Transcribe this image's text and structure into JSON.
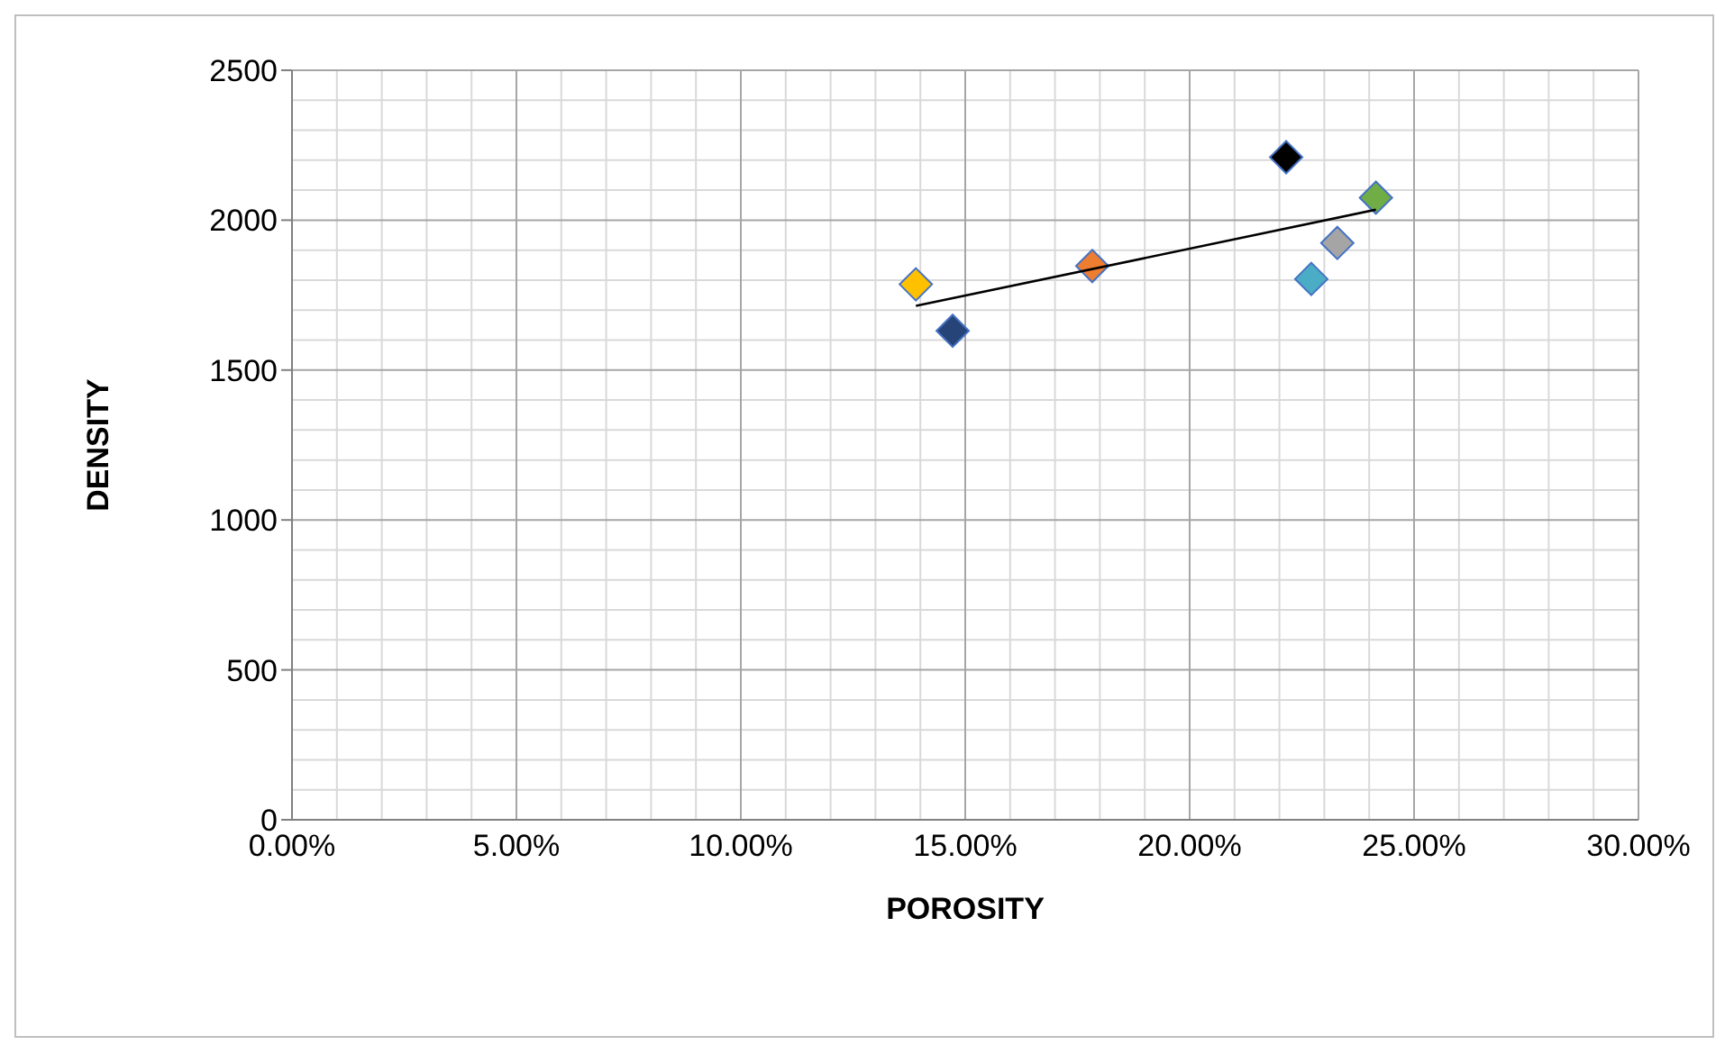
{
  "chart_data": {
    "type": "scatter",
    "xlabel": "POROSITY",
    "ylabel": "DENSITY",
    "x": [
      0.139,
      0.1472,
      0.1783,
      0.2215,
      0.2271,
      0.2329,
      0.2415
    ],
    "series": [
      {
        "values": [
          1786,
          1631,
          1847,
          2210,
          1804,
          1924,
          2075
        ],
        "colors": [
          "#ffc000",
          "#264478",
          "#ed7d31",
          "#000000",
          "#4bacc6",
          "#a5a5a5",
          "#70ad47"
        ],
        "marker": "diamond"
      },
      {
        "type": "line",
        "x": [
          0.139,
          0.2415
        ],
        "values": [
          1714,
          2035
        ],
        "color": "#000000",
        "marker": "none",
        "line_style": "solid"
      }
    ],
    "xlim": [
      0,
      0.3
    ],
    "ylim": [
      0,
      2500
    ],
    "xticks": [
      {
        "value": 0,
        "label": "0.00%"
      },
      {
        "value": 0.05,
        "label": "5.00%"
      },
      {
        "value": 0.1,
        "label": "10.00%"
      },
      {
        "value": 0.15,
        "label": "15.00%"
      },
      {
        "value": 0.2,
        "label": "20.00%"
      },
      {
        "value": 0.25,
        "label": "25.00%"
      },
      {
        "value": 0.3,
        "label": "30.00%"
      }
    ],
    "yticks": [
      0,
      500,
      1000,
      1500,
      2000,
      2500
    ],
    "grid": true
  }
}
